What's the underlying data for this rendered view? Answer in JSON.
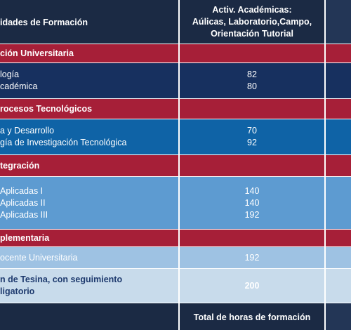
{
  "header": {
    "col1": "idades de Formación",
    "col2": [
      "Activ. Académicas:",
      "Aúlicas, Laboratorio,Campo,",
      "Orientación Tutorial"
    ]
  },
  "sections": [
    {
      "title": "ción Universitaria",
      "rows": [
        {
          "labels": [
            "logía",
            "cadémica"
          ],
          "values": [
            82,
            80
          ]
        }
      ]
    },
    {
      "title": "rocesos Tecnológicos",
      "rows": [
        {
          "labels": [
            "a y Desarrollo",
            "gía de Investigación Tecnológica"
          ],
          "values": [
            70,
            92
          ]
        }
      ]
    },
    {
      "title": "tegración",
      "rows": [
        {
          "labels": [
            "Aplicadas  I",
            "Aplicadas  II",
            "Aplicadas  III"
          ],
          "values": [
            140,
            140,
            192
          ]
        }
      ]
    },
    {
      "title": "plementaria",
      "rows": [
        {
          "labels": [
            "ocente Universitaria"
          ],
          "values": [
            192
          ]
        },
        {
          "labels": [
            "n de Tesina, con seguimiento",
            "ligatorio"
          ],
          "values": [
            200
          ]
        }
      ]
    }
  ],
  "footer": "Total de horas de formación"
}
